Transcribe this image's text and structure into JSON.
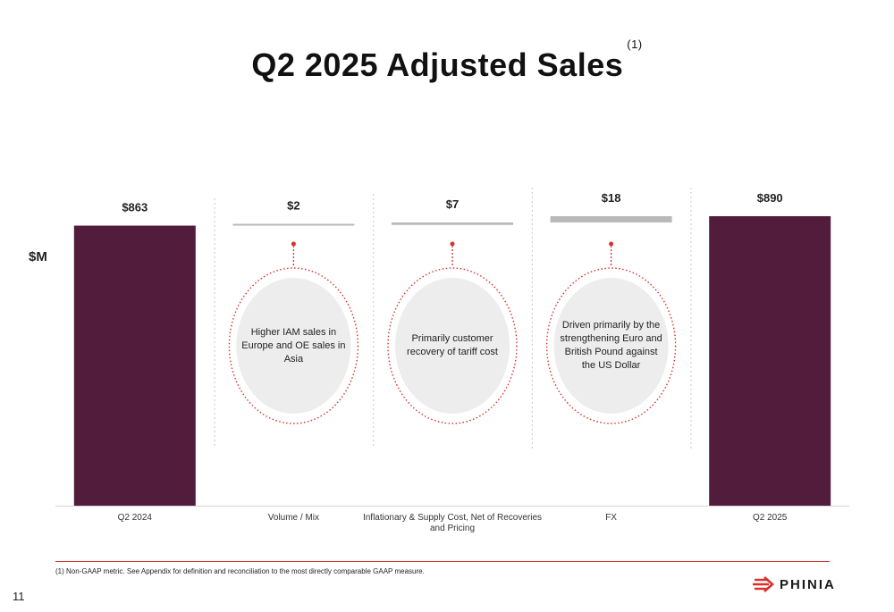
{
  "title": "Q2 2025 Adjusted Sales",
  "title_footnote_marker": "(1)",
  "unit_label": "$M",
  "chart_data": {
    "type": "bar",
    "subtype": "waterfall",
    "categories": [
      "Q2 2024",
      "Volume / Mix",
      "Inflationary & Supply Cost, Net of Recoveries and Pricing",
      "FX",
      "Q2 2025"
    ],
    "category_lines": [
      [
        "Q2 2024"
      ],
      [
        "Volume / Mix"
      ],
      [
        "Inflationary & Supply Cost, Net of Recoveries",
        "and Pricing"
      ],
      [
        "FX"
      ],
      [
        "Q2 2025"
      ]
    ],
    "values": [
      863,
      2,
      7,
      18,
      890
    ],
    "value_labels": [
      "$863",
      "$2",
      "$7",
      "$18",
      "$890"
    ],
    "bar_kinds": [
      "total",
      "delta",
      "delta",
      "delta",
      "total"
    ],
    "axis_floor": 60,
    "colors": {
      "total": "#521c3c",
      "delta": "#b9b9b9",
      "callout": "#d9302c",
      "bubble": "#ededed",
      "divider": "#c8c8c8"
    }
  },
  "callouts": [
    {
      "category_index": 1,
      "text": "Higher IAM sales in Europe and OE sales in Asia"
    },
    {
      "category_index": 2,
      "text": "Primarily customer recovery of tariff cost"
    },
    {
      "category_index": 3,
      "text": "Driven primarily by the strengthening Euro and British Pound against the US Dollar"
    }
  ],
  "footnote": "(1) Non-GAAP metric. See Appendix for definition and reconciliation to the most directly comparable GAAP measure.",
  "page_number": "11",
  "logo": {
    "text": "PHINIA",
    "icon": "phinia-arrow-icon"
  }
}
